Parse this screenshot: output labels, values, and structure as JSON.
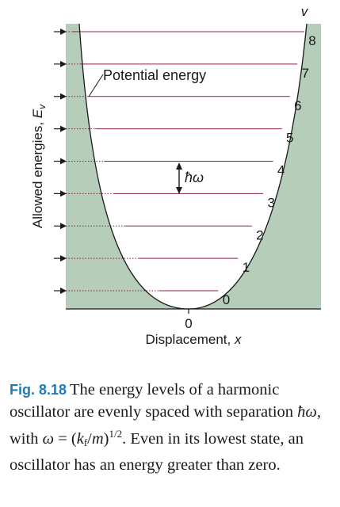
{
  "diagram": {
    "y_axis_label_base": "Allowed energies, ",
    "y_axis_label_var": "E",
    "y_axis_label_sub": "v",
    "x_axis_label_base": "Displacement, ",
    "x_axis_label_var": "x",
    "x_origin_label": "0",
    "curve_label": "Potential energy",
    "quantum_column_label": "v",
    "spacing_label": "ħω",
    "levels": [
      "0",
      "1",
      "2",
      "3",
      "4",
      "5",
      "6",
      "7",
      "8"
    ],
    "colors": {
      "fill": "#b5cdb9",
      "level_line": "#8b1f4b",
      "axis": "#1a1a1a"
    }
  },
  "caption": {
    "fig_label": "Fig. 8.18",
    "text_1": "The energy levels of a harmonic oscillator are evenly spaced with separation ",
    "hbar_omega": "ħω",
    "text_2": ", with ",
    "omega": "ω",
    "equals": " = (",
    "k": "k",
    "k_sub": "f",
    "slash_m": "/",
    "m": "m",
    "close_paren": ")",
    "exponent": "1/2",
    "text_3": ". Even in its lowest state, an oscillator has an energy greater than zero."
  }
}
